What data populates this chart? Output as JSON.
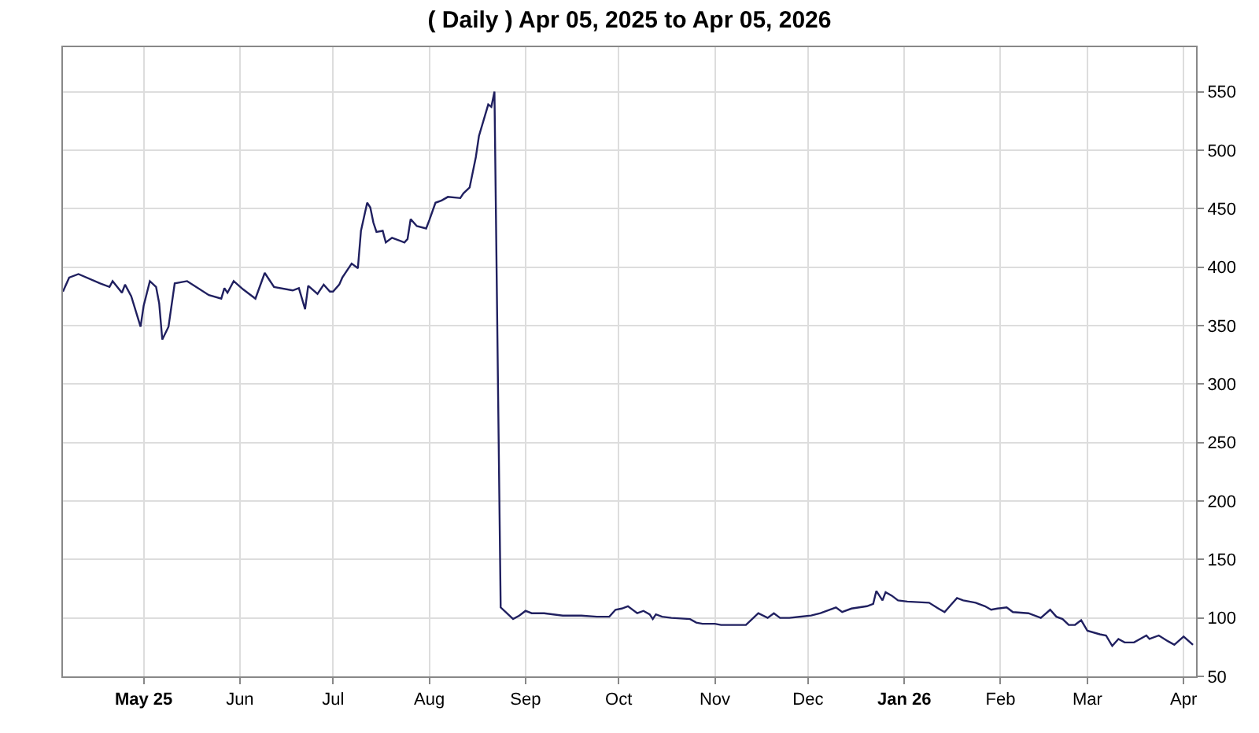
{
  "chart_data": {
    "type": "line",
    "title": "( Daily ) Apr 05, 2025 to Apr 05, 2026",
    "x": [
      "2025-04-05",
      "2025-04-07",
      "2025-04-10",
      "2025-04-17",
      "2025-04-20",
      "2025-04-21",
      "2025-04-24",
      "2025-04-25",
      "2025-04-27",
      "2025-04-30",
      "2025-05-01",
      "2025-05-03",
      "2025-05-05",
      "2025-05-06",
      "2025-05-07",
      "2025-05-09",
      "2025-05-11",
      "2025-05-15",
      "2025-05-22",
      "2025-05-26",
      "2025-05-27",
      "2025-05-28",
      "2025-05-30",
      "2025-06-02",
      "2025-06-06",
      "2025-06-09",
      "2025-06-12",
      "2025-06-18",
      "2025-06-20",
      "2025-06-22",
      "2025-06-23",
      "2025-06-26",
      "2025-06-28",
      "2025-06-30",
      "2025-07-01",
      "2025-07-03",
      "2025-07-04",
      "2025-07-07",
      "2025-07-09",
      "2025-07-10",
      "2025-07-12",
      "2025-07-13",
      "2025-07-14",
      "2025-07-15",
      "2025-07-17",
      "2025-07-18",
      "2025-07-20",
      "2025-07-24",
      "2025-07-25",
      "2025-07-26",
      "2025-07-28",
      "2025-07-31",
      "2025-08-01",
      "2025-08-03",
      "2025-08-05",
      "2025-08-07",
      "2025-08-11",
      "2025-08-12",
      "2025-08-14",
      "2025-08-16",
      "2025-08-17",
      "2025-08-20",
      "2025-08-21",
      "2025-08-22",
      "2025-08-24",
      "2025-08-26",
      "2025-08-28",
      "2025-08-30",
      "2025-09-01",
      "2025-09-03",
      "2025-09-07",
      "2025-09-13",
      "2025-09-19",
      "2025-09-24",
      "2025-09-28",
      "2025-09-30",
      "2025-10-02",
      "2025-10-04",
      "2025-10-07",
      "2025-10-09",
      "2025-10-11",
      "2025-10-12",
      "2025-10-13",
      "2025-10-15",
      "2025-10-18",
      "2025-10-24",
      "2025-10-26",
      "2025-10-28",
      "2025-11-01",
      "2025-11-03",
      "2025-11-06",
      "2025-11-11",
      "2025-11-13",
      "2025-11-15",
      "2025-11-18",
      "2025-11-20",
      "2025-11-22",
      "2025-11-25",
      "2025-12-02",
      "2025-12-05",
      "2025-12-10",
      "2025-12-12",
      "2025-12-15",
      "2025-12-20",
      "2025-12-22",
      "2025-12-23",
      "2025-12-25",
      "2025-12-26",
      "2025-12-28",
      "2025-12-30",
      "2026-01-02",
      "2026-01-09",
      "2026-01-12",
      "2026-01-14",
      "2026-01-16",
      "2026-01-18",
      "2026-01-20",
      "2026-01-24",
      "2026-01-27",
      "2026-01-29",
      "2026-01-31",
      "2026-02-03",
      "2026-02-05",
      "2026-02-10",
      "2026-02-14",
      "2026-02-17",
      "2026-02-19",
      "2026-02-21",
      "2026-02-23",
      "2026-02-25",
      "2026-02-27",
      "2026-03-01",
      "2026-03-05",
      "2026-03-07",
      "2026-03-09",
      "2026-03-11",
      "2026-03-13",
      "2026-03-16",
      "2026-03-20",
      "2026-03-21",
      "2026-03-24",
      "2026-03-27",
      "2026-03-29",
      "2026-04-01",
      "2026-04-04"
    ],
    "series": [
      {
        "color": "#202060",
        "values": [
          379,
          391,
          394,
          386,
          383,
          388,
          378,
          385,
          375,
          349,
          367,
          388,
          383,
          369,
          338,
          349,
          386,
          388,
          376,
          373,
          382,
          378,
          388,
          381,
          373,
          395,
          383,
          380,
          382,
          364,
          384,
          377,
          385,
          379,
          379,
          385,
          391,
          403,
          399,
          431,
          455,
          451,
          438,
          430,
          431,
          421,
          425,
          421,
          424,
          441,
          435,
          433,
          440,
          455,
          457,
          460,
          459,
          463,
          468,
          494,
          512,
          539,
          537,
          550,
          109,
          104,
          99,
          102,
          106,
          104,
          104,
          102,
          102,
          101,
          101,
          107,
          108,
          110,
          104,
          106,
          103,
          99,
          103,
          101,
          100,
          99,
          96,
          95,
          95,
          94,
          94,
          94,
          99,
          104,
          100,
          104,
          100,
          100,
          102,
          104,
          109,
          105,
          108,
          110,
          112,
          123,
          115,
          122,
          119,
          115,
          114,
          113,
          108,
          105,
          111,
          117,
          115,
          113,
          110,
          107,
          108,
          109,
          105,
          104,
          100,
          107,
          101,
          99,
          94,
          94,
          98,
          89,
          86,
          85,
          76,
          82,
          79,
          79,
          85,
          82,
          85,
          80,
          77,
          84,
          77
        ]
      }
    ],
    "xlim": [
      "2025-04-05",
      "2026-04-05"
    ],
    "xticks": [
      {
        "value": "2025-05-01",
        "label": "May 25"
      },
      {
        "value": "2025-06-01",
        "label": "Jun"
      },
      {
        "value": "2025-07-01",
        "label": "Jul"
      },
      {
        "value": "2025-08-01",
        "label": "Aug"
      },
      {
        "value": "2025-09-01",
        "label": "Sep"
      },
      {
        "value": "2025-10-01",
        "label": "Oct"
      },
      {
        "value": "2025-11-01",
        "label": "Nov"
      },
      {
        "value": "2025-12-01",
        "label": "Dec"
      },
      {
        "value": "2026-01-01",
        "label": "Jan 26"
      },
      {
        "value": "2026-02-01",
        "label": "Feb"
      },
      {
        "value": "2026-03-01",
        "label": "Mar"
      },
      {
        "value": "2026-04-01",
        "label": "Apr"
      }
    ],
    "ylim": [
      50,
      588
    ],
    "yticks": [
      50,
      100,
      150,
      200,
      250,
      300,
      350,
      400,
      450,
      500,
      550
    ],
    "grid": true
  }
}
